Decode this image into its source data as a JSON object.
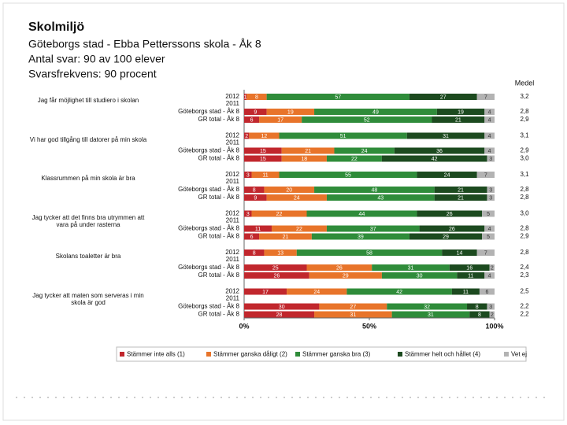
{
  "header": {
    "title": "Skolmiljö",
    "lines": [
      "Göteborgs stad - Ebba Petterssons skola - Åk 8",
      "Antal svar: 90 av 100 elever",
      "Svarsfrekvens: 90 procent"
    ]
  },
  "chart_data": {
    "type": "stacked_bar",
    "orientation": "horizontal",
    "mean_header": "Medel",
    "xlim": [
      0,
      100
    ],
    "xticks": [
      {
        "value": 0,
        "label": "0%"
      },
      {
        "value": 50,
        "label": "50%"
      },
      {
        "value": 100,
        "label": "100%"
      }
    ],
    "series": [
      {
        "name": "Stämmer inte alls (1)",
        "color": "#c1272d"
      },
      {
        "name": "Stämmer ganska dåligt (2)",
        "color": "#e8742a"
      },
      {
        "name": "Stämmer ganska bra (3)",
        "color": "#2f8c3a"
      },
      {
        "name": "Stämmer helt och hållet (4)",
        "color": "#1c4a1f"
      },
      {
        "name": "Vet ej",
        "color": "#b3b3b3"
      }
    ],
    "groups": [
      {
        "question": "Jag får möjlighet till studiero i skolan",
        "rows": [
          {
            "name": "2012",
            "values": [
              1,
              8,
              57,
              27,
              7
            ],
            "mean": "3,2"
          },
          {
            "name": "2011"
          },
          {
            "name": "Göteborgs stad - Åk 8",
            "values": [
              9,
              19,
              49,
              19,
              4
            ],
            "mean": "2,8"
          },
          {
            "name": "GR total - Åk 8",
            "values": [
              6,
              17,
              52,
              21,
              4
            ],
            "mean": "2,9"
          }
        ]
      },
      {
        "question": "Vi har god tillgång till datorer på min skola",
        "rows": [
          {
            "name": "2012",
            "values": [
              2,
              12,
              51,
              31,
              4
            ],
            "mean": "3,1"
          },
          {
            "name": "2011"
          },
          {
            "name": "Göteborgs stad - Åk 8",
            "values": [
              15,
              21,
              24,
              36,
              4
            ],
            "mean": "2,9"
          },
          {
            "name": "GR total - Åk 8",
            "values": [
              15,
              18,
              22,
              42,
              3
            ],
            "mean": "3,0"
          }
        ]
      },
      {
        "question": "Klassrummen på min skola är bra",
        "rows": [
          {
            "name": "2012",
            "values": [
              3,
              11,
              55,
              24,
              7
            ],
            "mean": "3,1"
          },
          {
            "name": "2011"
          },
          {
            "name": "Göteborgs stad - Åk 8",
            "values": [
              8,
              20,
              48,
              21,
              3
            ],
            "mean": "2,8"
          },
          {
            "name": "GR total - Åk 8",
            "values": [
              9,
              24,
              43,
              21,
              3
            ],
            "mean": "2,8"
          }
        ]
      },
      {
        "question": "Jag tycker att det finns bra utrymmen att vara på under rasterna",
        "rows": [
          {
            "name": "2012",
            "values": [
              3,
              22,
              44,
              26,
              5
            ],
            "mean": "3,0"
          },
          {
            "name": "2011"
          },
          {
            "name": "Göteborgs stad - Åk 8",
            "values": [
              11,
              22,
              37,
              26,
              4
            ],
            "mean": "2,8"
          },
          {
            "name": "GR total - Åk 8",
            "values": [
              6,
              21,
              39,
              29,
              5
            ],
            "mean": "2,9"
          }
        ]
      },
      {
        "question": "Skolans toaletter är bra",
        "rows": [
          {
            "name": "2012",
            "values": [
              8,
              13,
              58,
              14,
              7
            ],
            "mean": "2,8"
          },
          {
            "name": "2011"
          },
          {
            "name": "Göteborgs stad - Åk 8",
            "values": [
              25,
              26,
              31,
              16,
              2
            ],
            "mean": "2,4"
          },
          {
            "name": "GR total - Åk 8",
            "values": [
              26,
              29,
              30,
              11,
              4
            ],
            "mean": "2,3"
          }
        ]
      },
      {
        "question": "Jag tycker att maten som serveras i min skola är god",
        "rows": [
          {
            "name": "2012",
            "values": [
              17,
              24,
              42,
              11,
              6
            ],
            "mean": "2,5"
          },
          {
            "name": "2011"
          },
          {
            "name": "Göteborgs stad - Åk 8",
            "values": [
              30,
              27,
              32,
              8,
              3
            ],
            "mean": "2,2"
          },
          {
            "name": "GR total - Åk 8",
            "values": [
              28,
              31,
              31,
              8,
              2
            ],
            "mean": "2,2"
          }
        ]
      }
    ]
  }
}
